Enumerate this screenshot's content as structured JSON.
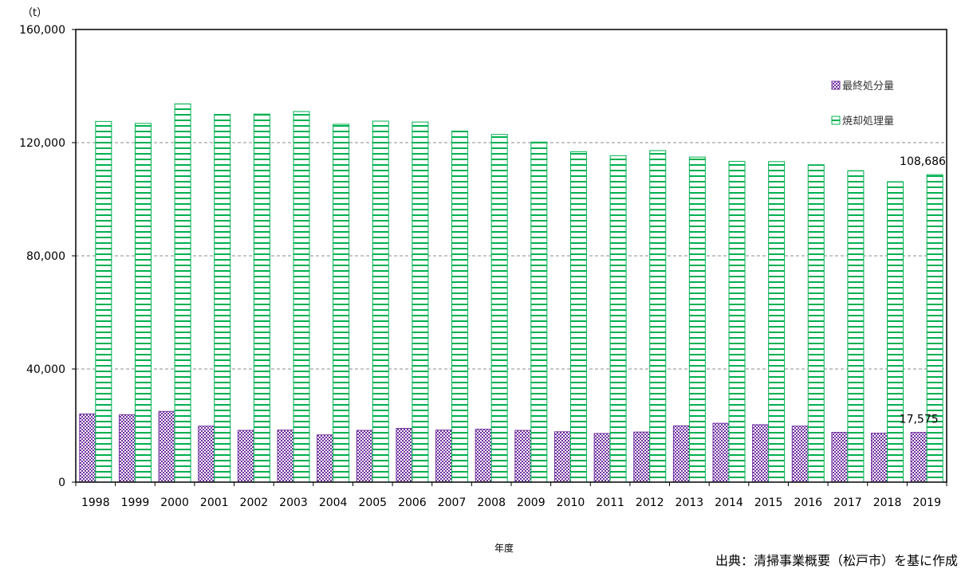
{
  "chart_data": {
    "type": "bar",
    "unit_label": "（t）",
    "xlabel": "年度",
    "ylim": [
      0,
      160000
    ],
    "yticks": [
      0,
      40000,
      80000,
      120000,
      160000
    ],
    "ytick_labels": [
      "0",
      "40,000",
      "80,000",
      "120,000",
      "160,000"
    ],
    "grid": "horizontal dashed",
    "legend_position": "upper-right",
    "categories": [
      "1998",
      "1999",
      "2000",
      "2001",
      "2002",
      "2003",
      "2004",
      "2005",
      "2006",
      "2007",
      "2008",
      "2009",
      "2010",
      "2011",
      "2012",
      "2013",
      "2014",
      "2015",
      "2016",
      "2017",
      "2018",
      "2019"
    ],
    "series": [
      {
        "name": "最終処分量",
        "color": "#7030A0",
        "pattern": "checker",
        "values": [
          24100,
          23800,
          25000,
          19800,
          18300,
          18400,
          16700,
          18300,
          19000,
          18400,
          18700,
          18300,
          17800,
          17200,
          17700,
          19900,
          20800,
          20300,
          19800,
          17600,
          17300,
          17575
        ]
      },
      {
        "name": "焼却処理量",
        "color": "#00B050",
        "pattern": "horizontal-lines",
        "values": [
          127500,
          126800,
          133700,
          130000,
          130100,
          131000,
          126500,
          127600,
          127300,
          124100,
          122900,
          120200,
          116800,
          115400,
          117200,
          114900,
          113400,
          113300,
          112200,
          110100,
          106200,
          108686
        ]
      }
    ],
    "data_labels": [
      {
        "series": "焼却処理量",
        "category": "2019",
        "text": "108,686"
      },
      {
        "series": "最終処分量",
        "category": "2019",
        "text": "17,575"
      }
    ]
  },
  "source_note": "出典：清掃事業概要（松戸市）を基に作成"
}
